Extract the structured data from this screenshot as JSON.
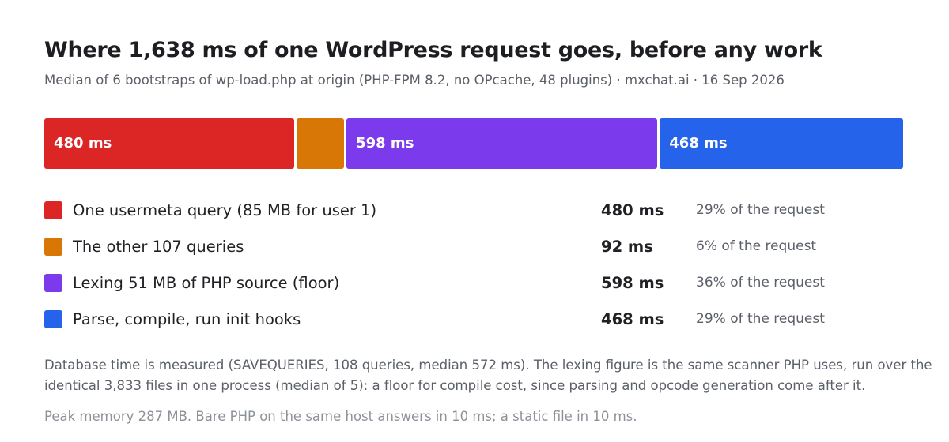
{
  "header": {
    "title": "Where 1,638 ms of one WordPress request goes, before any work",
    "subtitle": "Median of 6 bootstraps of wp-load.php at origin (PHP-FPM 8.2, no OPcache, 48 plugins) · mxchat.ai · 16 Sep 2026"
  },
  "chart_data": {
    "type": "bar",
    "orientation": "horizontal-stacked",
    "title": "Where 1,638 ms of one WordPress request goes, before any work",
    "subtitle": "Median of 6 bootstraps of wp-load.php at origin (PHP-FPM 8.2, no OPcache, 48 plugins) · mxchat.ai · 16 Sep 2026",
    "unit": "ms",
    "total": 1638,
    "legend_placement": "below",
    "grid": false,
    "segments": [
      {
        "name": "One usermeta query (85 MB for user 1)",
        "value": 480,
        "value_label": "480 ms",
        "bar_label": "480 ms",
        "share": "29% of the request",
        "color": "#dc2626"
      },
      {
        "name": "The other 107 queries",
        "value": 92,
        "value_label": "92 ms",
        "bar_label": "",
        "share": "6% of the request",
        "color": "#d97706"
      },
      {
        "name": "Lexing 51 MB of PHP source (floor)",
        "value": 598,
        "value_label": "598 ms",
        "bar_label": "598 ms",
        "share": "36% of the request",
        "color": "#7c3aed"
      },
      {
        "name": "Parse, compile, run init hooks",
        "value": 468,
        "value_label": "468 ms",
        "bar_label": "468 ms",
        "share": "29% of the request",
        "color": "#2563eb"
      }
    ]
  },
  "notes": {
    "footnote": "Database time is measured (SAVEQUERIES, 108 queries, median 572 ms). The lexing figure is the same scanner PHP uses, run over the identical 3,833 files in one process (median of 5): a floor for compile cost, since parsing and opcode generation come after it.",
    "fineprint": "Peak memory 287 MB. Bare PHP on the same host answers in 10 ms; a static file in 10 ms."
  }
}
